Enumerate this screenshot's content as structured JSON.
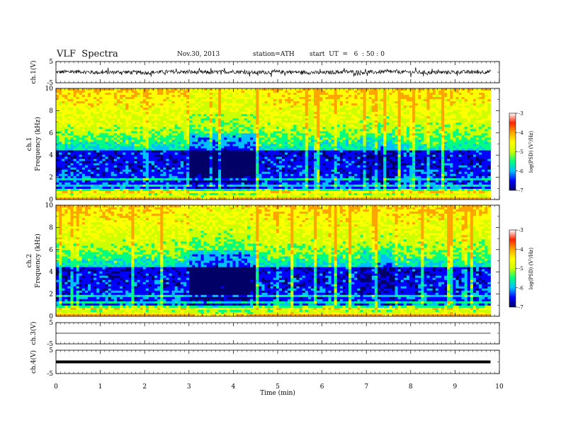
{
  "header": {
    "title": "VLF  Spectra",
    "date": "Nov.30, 2013",
    "station": "station=ATH",
    "start": "start  UT  =   6  : 50 : 0"
  },
  "chart_data": [
    {
      "type": "line",
      "panel": "ch1-waveform",
      "ylabel": "ch.1(V)",
      "ylim": [
        -5,
        5
      ],
      "yticks": [
        "5",
        "-5"
      ],
      "series": [
        {
          "color": "#000000",
          "x": [
            0,
            0.5,
            1,
            1.5,
            2,
            2.5,
            3,
            3.5,
            4,
            4.5,
            5,
            5.5,
            6,
            6.5,
            7,
            7.5,
            8,
            8.5,
            9,
            9.5,
            9.8
          ],
          "y": [
            0,
            0.3,
            -0.2,
            0.1,
            -0.3,
            0.2,
            0,
            -0.1,
            0.3,
            -0.2,
            0.1,
            0,
            -0.3,
            0.2,
            -0.1,
            0.2,
            0,
            -0.2,
            0.1,
            0,
            0.2
          ],
          "envelope": 1.5
        }
      ]
    },
    {
      "type": "heatmap",
      "panel": "ch1-spectrogram",
      "ylabel": "ch.1\nFrequency (kHz)",
      "xlim": [
        0,
        10
      ],
      "ylim": [
        0,
        10
      ],
      "yticks": [
        "10",
        "8",
        "6",
        "4",
        "2",
        "0"
      ],
      "data_extent_min": 9.8,
      "colorbar": {
        "label": "log(PSD) (V²/Hz)",
        "range": [
          -7,
          -3
        ],
        "ticks": [
          "-3",
          "-4",
          "-5",
          "-6",
          "-7"
        ]
      }
    },
    {
      "type": "heatmap",
      "panel": "ch2-spectrogram",
      "ylabel": "ch.2\nFrequency (kHz)",
      "xlim": [
        0,
        10
      ],
      "ylim": [
        0,
        10
      ],
      "yticks": [
        "10",
        "8",
        "6",
        "4",
        "2",
        "0"
      ],
      "data_extent_min": 9.8,
      "colorbar": {
        "label": "log(PSD) (V²/Hz)",
        "range": [
          -7,
          -3
        ],
        "ticks": [
          "-3",
          "-4",
          "-5",
          "-6",
          "-7"
        ]
      }
    },
    {
      "type": "line",
      "panel": "ch3-waveform",
      "ylabel": "ch.3(V)",
      "ylim": [
        -5,
        5
      ],
      "yticks": [
        "5",
        "-5"
      ],
      "series": [
        {
          "color": "#000000",
          "x": [
            0,
            9.8
          ],
          "y": [
            0,
            0
          ]
        }
      ]
    },
    {
      "type": "line",
      "panel": "ch4-waveform",
      "ylabel": "ch.4(V)",
      "ylim": [
        -5,
        5
      ],
      "yticks": [
        "5",
        "-5"
      ],
      "series": [
        {
          "color": "#000000",
          "x": [
            0,
            9.8
          ],
          "y": [
            0,
            0
          ],
          "thick": true
        }
      ]
    }
  ],
  "xaxis": {
    "label": "Time  (min)",
    "range": [
      0,
      10
    ],
    "ticks": [
      "0",
      "1",
      "2",
      "3",
      "4",
      "5",
      "6",
      "7",
      "8",
      "9",
      "10"
    ]
  },
  "colormap": [
    "#000066",
    "#0000ff",
    "#00bfff",
    "#00ff80",
    "#ccff00",
    "#ffff00",
    "#ffa500",
    "#ff2200",
    "#ffffff"
  ]
}
